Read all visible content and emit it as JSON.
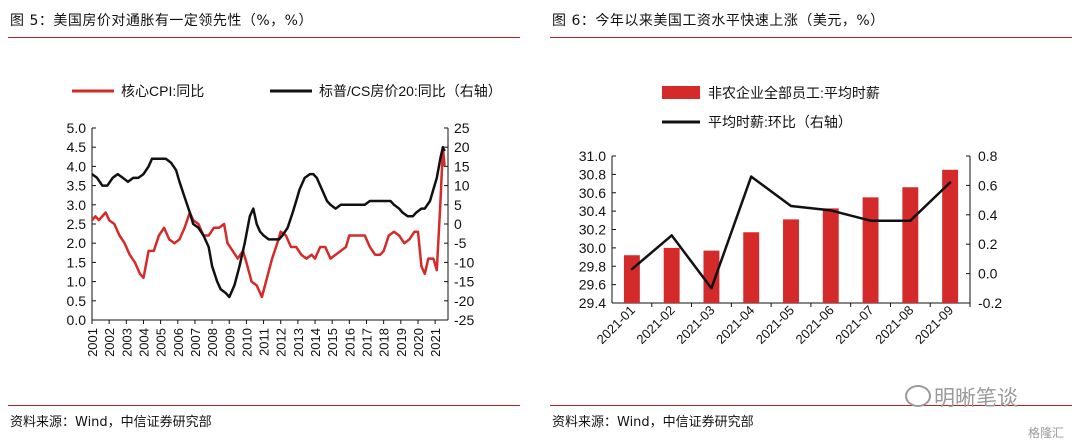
{
  "left": {
    "title": "图 5：美国房价对通胀有一定领先性（%，%）",
    "source": "资料来源：Wind，中信证券研究部",
    "chart_data": {
      "type": "line",
      "legend": {
        "position": "top",
        "entries": [
          {
            "label": "核心CPI:同比",
            "color": "#d42a2a"
          },
          {
            "label": "标普/CS房价20:同比（右轴）",
            "color": "#111111"
          }
        ]
      },
      "x_range": [
        2001,
        2021.75
      ],
      "x_ticks": [
        "2001",
        "2002",
        "2003",
        "2004",
        "2005",
        "2006",
        "2007",
        "2008",
        "2009",
        "2010",
        "2011",
        "2012",
        "2013",
        "2014",
        "2015",
        "2016",
        "2017",
        "2018",
        "2019",
        "2020",
        "2021"
      ],
      "y_left": {
        "range": [
          0,
          5
        ],
        "ticks": [
          "0.0",
          "0.5",
          "1.0",
          "1.5",
          "2.0",
          "2.5",
          "3.0",
          "3.5",
          "4.0",
          "4.5",
          "5.0"
        ]
      },
      "y_right": {
        "range": [
          -25,
          25
        ],
        "ticks": [
          "-25",
          "-20",
          "-15",
          "-10",
          "-5",
          "0",
          "5",
          "10",
          "15",
          "20",
          "25"
        ]
      },
      "series": [
        {
          "name": "核心CPI:同比",
          "axis": "left",
          "color": "#d42a2a",
          "points": [
            [
              2001.0,
              2.6
            ],
            [
              2001.2,
              2.7
            ],
            [
              2001.4,
              2.6
            ],
            [
              2001.6,
              2.7
            ],
            [
              2001.8,
              2.8
            ],
            [
              2002.0,
              2.6
            ],
            [
              2002.3,
              2.5
            ],
            [
              2002.6,
              2.2
            ],
            [
              2002.9,
              2.0
            ],
            [
              2003.2,
              1.7
            ],
            [
              2003.5,
              1.5
            ],
            [
              2003.8,
              1.2
            ],
            [
              2004.0,
              1.1
            ],
            [
              2004.3,
              1.8
            ],
            [
              2004.6,
              1.8
            ],
            [
              2004.9,
              2.2
            ],
            [
              2005.2,
              2.4
            ],
            [
              2005.5,
              2.1
            ],
            [
              2005.8,
              2.0
            ],
            [
              2006.1,
              2.1
            ],
            [
              2006.4,
              2.4
            ],
            [
              2006.7,
              2.8
            ],
            [
              2006.9,
              2.6
            ],
            [
              2007.2,
              2.5
            ],
            [
              2007.5,
              2.2
            ],
            [
              2007.8,
              2.2
            ],
            [
              2008.1,
              2.4
            ],
            [
              2008.4,
              2.4
            ],
            [
              2008.7,
              2.5
            ],
            [
              2008.9,
              2.0
            ],
            [
              2009.2,
              1.8
            ],
            [
              2009.5,
              1.6
            ],
            [
              2009.8,
              1.8
            ],
            [
              2010.0,
              1.5
            ],
            [
              2010.3,
              1.0
            ],
            [
              2010.6,
              0.9
            ],
            [
              2010.9,
              0.6
            ],
            [
              2011.2,
              1.1
            ],
            [
              2011.5,
              1.6
            ],
            [
              2011.8,
              2.0
            ],
            [
              2012.0,
              2.3
            ],
            [
              2012.3,
              2.2
            ],
            [
              2012.6,
              1.9
            ],
            [
              2012.9,
              1.9
            ],
            [
              2013.2,
              1.7
            ],
            [
              2013.5,
              1.6
            ],
            [
              2013.8,
              1.7
            ],
            [
              2014.0,
              1.6
            ],
            [
              2014.3,
              1.9
            ],
            [
              2014.6,
              1.9
            ],
            [
              2014.9,
              1.6
            ],
            [
              2015.2,
              1.7
            ],
            [
              2015.5,
              1.8
            ],
            [
              2015.8,
              1.9
            ],
            [
              2016.0,
              2.2
            ],
            [
              2016.3,
              2.2
            ],
            [
              2016.6,
              2.2
            ],
            [
              2016.9,
              2.2
            ],
            [
              2017.2,
              1.9
            ],
            [
              2017.5,
              1.7
            ],
            [
              2017.8,
              1.7
            ],
            [
              2018.0,
              1.8
            ],
            [
              2018.3,
              2.2
            ],
            [
              2018.6,
              2.3
            ],
            [
              2018.9,
              2.2
            ],
            [
              2019.2,
              2.0
            ],
            [
              2019.5,
              2.1
            ],
            [
              2019.8,
              2.3
            ],
            [
              2020.0,
              2.3
            ],
            [
              2020.2,
              1.4
            ],
            [
              2020.4,
              1.2
            ],
            [
              2020.6,
              1.6
            ],
            [
              2020.9,
              1.6
            ],
            [
              2021.1,
              1.3
            ],
            [
              2021.3,
              3.0
            ],
            [
              2021.45,
              4.5
            ],
            [
              2021.55,
              4.0
            ]
          ]
        },
        {
          "name": "标普/CS房价20:同比（右轴）",
          "axis": "right",
          "color": "#111111",
          "points": [
            [
              2001.0,
              13
            ],
            [
              2001.3,
              12
            ],
            [
              2001.6,
              10
            ],
            [
              2001.9,
              10
            ],
            [
              2002.2,
              12
            ],
            [
              2002.5,
              13
            ],
            [
              2002.8,
              12
            ],
            [
              2003.1,
              11
            ],
            [
              2003.4,
              12
            ],
            [
              2003.7,
              12
            ],
            [
              2004.0,
              13
            ],
            [
              2004.3,
              15
            ],
            [
              2004.5,
              17
            ],
            [
              2004.8,
              17
            ],
            [
              2005.0,
              17
            ],
            [
              2005.3,
              17
            ],
            [
              2005.6,
              16
            ],
            [
              2005.9,
              14
            ],
            [
              2006.1,
              11
            ],
            [
              2006.4,
              7
            ],
            [
              2006.7,
              3
            ],
            [
              2006.9,
              0
            ],
            [
              2007.2,
              -1
            ],
            [
              2007.5,
              -3
            ],
            [
              2007.8,
              -6
            ],
            [
              2008.0,
              -11
            ],
            [
              2008.3,
              -15
            ],
            [
              2008.5,
              -17
            ],
            [
              2008.8,
              -18
            ],
            [
              2009.0,
              -19
            ],
            [
              2009.3,
              -16
            ],
            [
              2009.6,
              -11
            ],
            [
              2009.9,
              -5
            ],
            [
              2010.2,
              2
            ],
            [
              2010.4,
              4
            ],
            [
              2010.6,
              0
            ],
            [
              2010.8,
              -2
            ],
            [
              2011.0,
              -3
            ],
            [
              2011.3,
              -4
            ],
            [
              2011.6,
              -4
            ],
            [
              2011.9,
              -4
            ],
            [
              2012.1,
              -3
            ],
            [
              2012.4,
              -1
            ],
            [
              2012.7,
              3
            ],
            [
              2012.9,
              6
            ],
            [
              2013.1,
              9
            ],
            [
              2013.4,
              12
            ],
            [
              2013.7,
              13
            ],
            [
              2013.9,
              13
            ],
            [
              2014.1,
              12
            ],
            [
              2014.4,
              9
            ],
            [
              2014.7,
              6
            ],
            [
              2014.9,
              5
            ],
            [
              2015.2,
              4
            ],
            [
              2015.5,
              5
            ],
            [
              2015.8,
              5
            ],
            [
              2016.1,
              5
            ],
            [
              2016.4,
              5
            ],
            [
              2016.7,
              5
            ],
            [
              2016.9,
              5
            ],
            [
              2017.2,
              6
            ],
            [
              2017.5,
              6
            ],
            [
              2017.8,
              6
            ],
            [
              2018.1,
              6
            ],
            [
              2018.4,
              6
            ],
            [
              2018.6,
              5
            ],
            [
              2018.9,
              4
            ],
            [
              2019.1,
              3
            ],
            [
              2019.4,
              2
            ],
            [
              2019.7,
              2
            ],
            [
              2019.9,
              3
            ],
            [
              2020.2,
              4
            ],
            [
              2020.4,
              4
            ],
            [
              2020.7,
              6
            ],
            [
              2020.9,
              9
            ],
            [
              2021.1,
              12
            ],
            [
              2021.3,
              17
            ],
            [
              2021.45,
              20
            ],
            [
              2021.55,
              19
            ]
          ]
        }
      ]
    }
  },
  "right": {
    "title": "图 6：今年以来美国工资水平快速上涨（美元，%）",
    "source": "资料来源：Wind，中信证券研究部",
    "chart_data": {
      "type": "bar",
      "legend": {
        "position": "top",
        "entries": [
          {
            "label": "非农企业全部员工:平均时薪",
            "color": "#d42a2a",
            "kind": "bar"
          },
          {
            "label": "平均时薪:环比（右轴）",
            "color": "#111111",
            "kind": "line"
          }
        ]
      },
      "categories": [
        "2021-01",
        "2021-02",
        "2021-03",
        "2021-04",
        "2021-05",
        "2021-06",
        "2021-07",
        "2021-08",
        "2021-09"
      ],
      "y_left": {
        "range": [
          29.4,
          31.0
        ],
        "ticks": [
          "29.4",
          "29.6",
          "29.8",
          "30.0",
          "30.2",
          "30.4",
          "30.6",
          "30.8",
          "31.0"
        ]
      },
      "y_right": {
        "range": [
          -0.2,
          0.8
        ],
        "ticks": [
          "-0.2",
          "0.0",
          "0.2",
          "0.4",
          "0.6",
          "0.8"
        ]
      },
      "series": [
        {
          "name": "非农企业全部员工:平均时薪",
          "type": "bar",
          "axis": "left",
          "color": "#d42a2a",
          "values": [
            29.92,
            30.0,
            29.97,
            30.17,
            30.31,
            30.43,
            30.55,
            30.66,
            30.85
          ]
        },
        {
          "name": "平均时薪:环比（右轴）",
          "type": "line",
          "axis": "right",
          "color": "#111111",
          "values": [
            0.03,
            0.26,
            -0.1,
            0.66,
            0.46,
            0.43,
            0.36,
            0.36,
            0.62
          ]
        }
      ]
    }
  },
  "watermark": {
    "brand": "明晰笔谈",
    "tag": "格隆汇"
  }
}
